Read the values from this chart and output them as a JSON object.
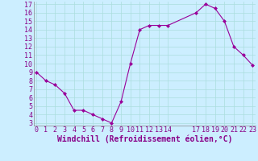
{
  "xlabel": "Windchill (Refroidissement éolien,°C)",
  "x_values": [
    0,
    1,
    2,
    3,
    4,
    5,
    6,
    7,
    8,
    9,
    10,
    11,
    12,
    13,
    14,
    17,
    18,
    19,
    20,
    21,
    22,
    23
  ],
  "y_values": [
    9.0,
    8.0,
    7.5,
    6.5,
    4.5,
    4.5,
    4.0,
    3.5,
    3.0,
    5.5,
    10.0,
    14.0,
    14.5,
    14.5,
    14.5,
    16.0,
    17.0,
    16.5,
    15.0,
    12.0,
    11.0,
    9.8
  ],
  "line_color": "#990099",
  "marker": "D",
  "marker_size": 2,
  "bg_color": "#cceeff",
  "grid_color": "#aadddd",
  "ylim_min": 3,
  "ylim_max": 17,
  "xlim_min": 0,
  "xlim_max": 23,
  "yticks": [
    3,
    4,
    5,
    6,
    7,
    8,
    9,
    10,
    11,
    12,
    13,
    14,
    15,
    16,
    17
  ],
  "xticks": [
    0,
    1,
    2,
    3,
    4,
    5,
    6,
    7,
    8,
    9,
    10,
    11,
    12,
    13,
    14,
    17,
    18,
    19,
    20,
    21,
    22,
    23
  ],
  "tick_label_color": "#880088",
  "tick_label_fontsize": 6,
  "xlabel_fontsize": 7,
  "xlabel_color": "#880088",
  "spine_color": "#888888",
  "linewidth": 0.8
}
